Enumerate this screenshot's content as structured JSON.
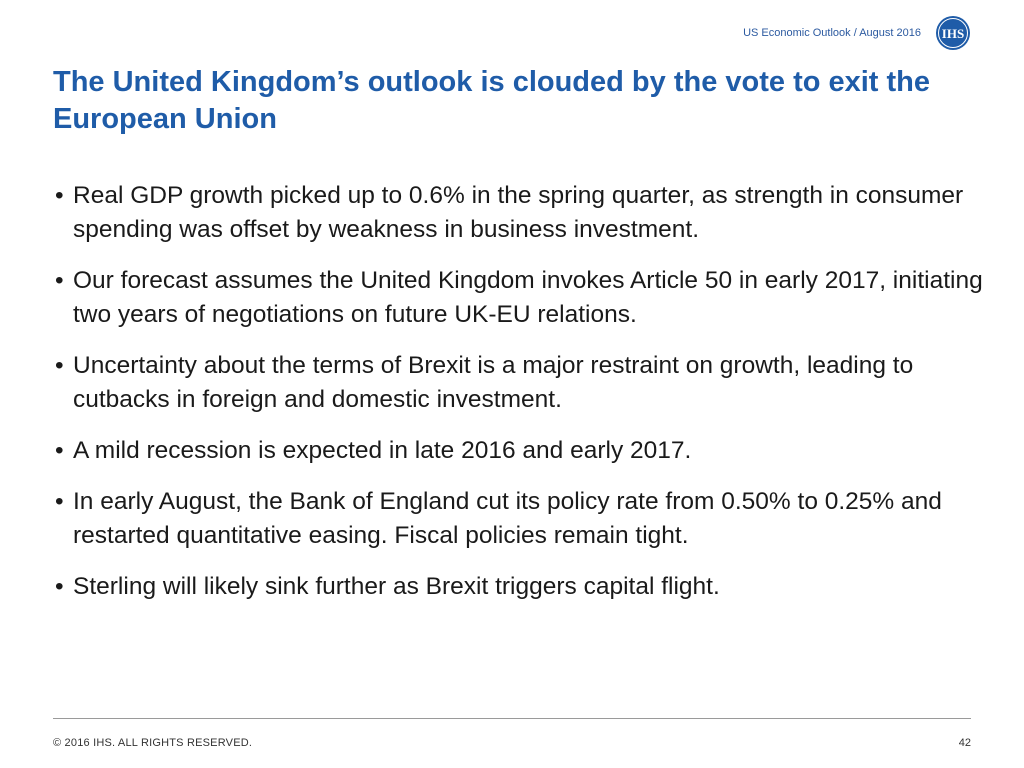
{
  "header": {
    "subtitle": "US Economic Outlook / August 2016",
    "logo_text": "IHS",
    "logo_color": "#1f5ca8"
  },
  "title": "The United Kingdom’s outlook is clouded by the vote to exit the European Union",
  "bullet_char": "•",
  "bullets": [
    "Real GDP growth picked up to 0.6% in the spring quarter, as strength in consumer spending was offset by weakness in business investment.",
    "Our forecast assumes the United Kingdom invokes Article 50 in early 2017, initiating two years of negotiations on future UK-EU relations.",
    "Uncertainty about the terms of Brexit is a major restraint on growth, leading to cutbacks in foreign and domestic investment.",
    "A mild recession is expected in late 2016 and early 2017.",
    "In early August, the Bank of England cut its policy rate from 0.50% to 0.25% and restarted quantitative easing. Fiscal policies remain tight.",
    "Sterling will likely sink further as Brexit triggers capital flight."
  ],
  "footer": {
    "copyright": "© 2016 IHS. ALL RIGHTS RESERVED.",
    "page_number": "42"
  }
}
